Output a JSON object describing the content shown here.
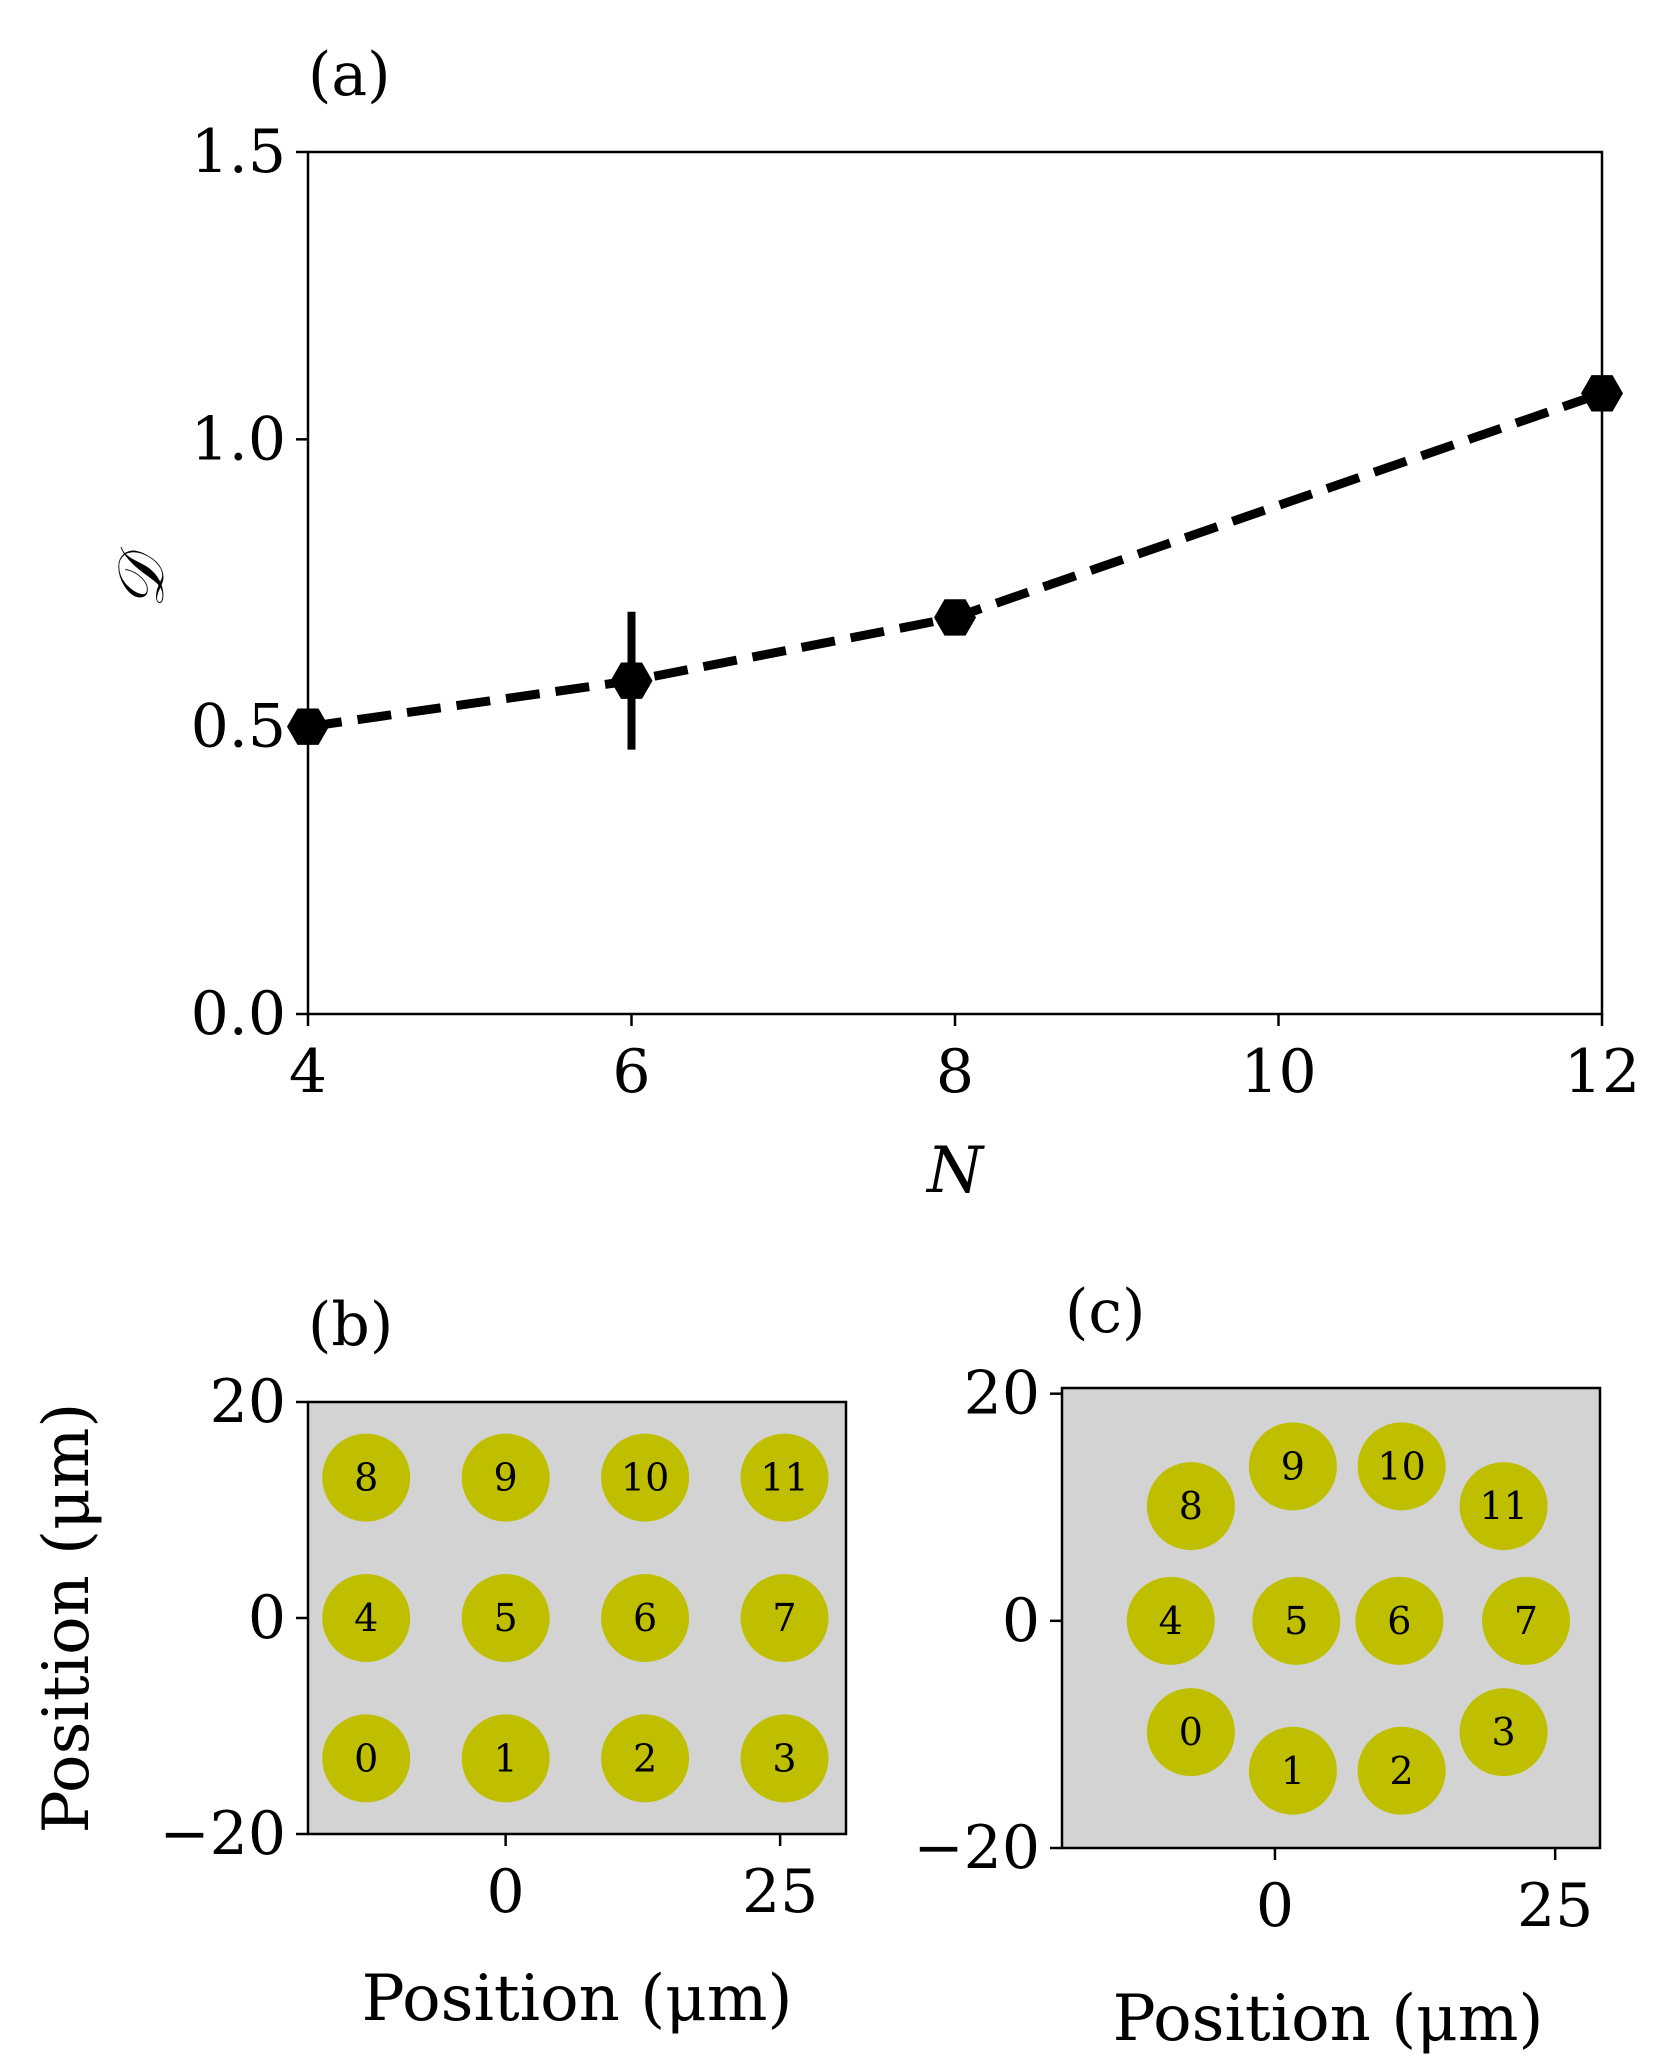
{
  "figure": {
    "background": "#ffffff"
  },
  "chart_data": [
    {
      "panel": "(a)",
      "type": "line",
      "xlabel": "N",
      "ylabel": "𝒟",
      "x": [
        4,
        6,
        8,
        12
      ],
      "y": [
        0.5,
        0.58,
        0.69,
        1.08
      ],
      "yerr": [
        0.0,
        0.12,
        0.0,
        0.0
      ],
      "xlim": [
        4,
        12
      ],
      "ylim": [
        0.0,
        1.5
      ],
      "xticks": [
        4,
        6,
        8,
        10,
        12
      ],
      "xtick_labels": [
        "4",
        "6",
        "8",
        "10",
        "12"
      ],
      "yticks": [
        0.0,
        0.5,
        1.0,
        1.5
      ],
      "ytick_labels": [
        "0.0",
        "0.5",
        "1.0",
        "1.5"
      ],
      "line_style": "dashed",
      "color": "#000000",
      "legend": "none"
    },
    {
      "panel": "(b)",
      "type": "scatter",
      "xlabel": "Position (μm)",
      "ylabel": "Position (μm)",
      "xlim": [
        -18,
        31
      ],
      "ylim": [
        -20,
        20
      ],
      "xticks": [
        0,
        25
      ],
      "xtick_labels": [
        "0",
        "25"
      ],
      "yticks": [
        -20,
        0,
        20
      ],
      "ytick_labels": [
        "−20",
        "0",
        "20"
      ],
      "background": "#d3d3d3",
      "marker_color": "#bfbf00",
      "points": [
        {
          "label": "0",
          "x": -12.7,
          "y": -13
        },
        {
          "label": "1",
          "x": 0,
          "y": -13
        },
        {
          "label": "2",
          "x": 12.7,
          "y": -13
        },
        {
          "label": "3",
          "x": 25.4,
          "y": -13
        },
        {
          "label": "4",
          "x": -12.7,
          "y": 0
        },
        {
          "label": "5",
          "x": 0,
          "y": 0
        },
        {
          "label": "6",
          "x": 12.7,
          "y": 0
        },
        {
          "label": "7",
          "x": 25.4,
          "y": 0
        },
        {
          "label": "8",
          "x": -12.7,
          "y": 13
        },
        {
          "label": "9",
          "x": 0,
          "y": 13
        },
        {
          "label": "10",
          "x": 12.7,
          "y": 13
        },
        {
          "label": "11",
          "x": 25.4,
          "y": 13
        }
      ]
    },
    {
      "panel": "(c)",
      "type": "scatter",
      "xlabel": "Position (μm)",
      "ylabel": "",
      "xlim": [
        -19,
        29
      ],
      "ylim": [
        -20,
        20.5
      ],
      "xticks": [
        0,
        25
      ],
      "xtick_labels": [
        "0",
        "25"
      ],
      "yticks": [
        -20,
        0,
        20
      ],
      "ytick_labels": [
        "−20",
        "0",
        "20"
      ],
      "background": "#d3d3d3",
      "marker_color": "#bfbf00",
      "points": [
        {
          "label": "0",
          "x": -7.5,
          "y": -9.8
        },
        {
          "label": "1",
          "x": 1.6,
          "y": -13.2
        },
        {
          "label": "2",
          "x": 11.3,
          "y": -13.2
        },
        {
          "label": "3",
          "x": 20.4,
          "y": -9.8
        },
        {
          "label": "4",
          "x": -9.3,
          "y": 0
        },
        {
          "label": "5",
          "x": 1.9,
          "y": 0
        },
        {
          "label": "6",
          "x": 11.1,
          "y": 0
        },
        {
          "label": "7",
          "x": 22.4,
          "y": 0
        },
        {
          "label": "8",
          "x": -7.5,
          "y": 10.1
        },
        {
          "label": "9",
          "x": 1.6,
          "y": 13.6
        },
        {
          "label": "10",
          "x": 11.3,
          "y": 13.6
        },
        {
          "label": "11",
          "x": 20.4,
          "y": 10.1
        }
      ]
    }
  ]
}
